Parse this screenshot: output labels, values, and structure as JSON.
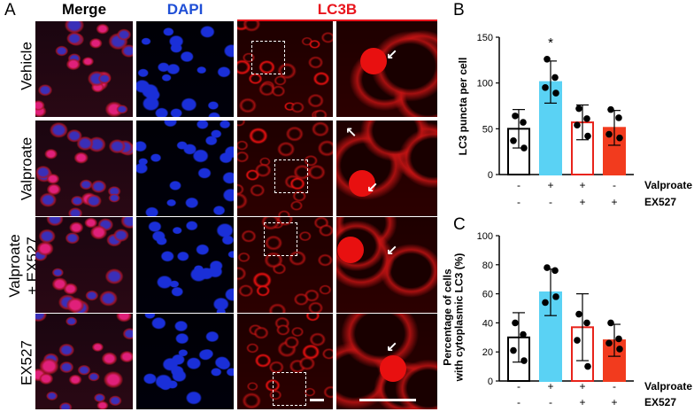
{
  "figure": {
    "panel_labels": {
      "a": "A",
      "b": "B",
      "c": "C"
    },
    "columns": [
      {
        "label": "Merge",
        "color": "#000000"
      },
      {
        "label": "DAPI",
        "color": "#1f4fd6"
      },
      {
        "label": "LC3B",
        "color": "#e8141c"
      }
    ],
    "rows": [
      {
        "label": "Vehicle"
      },
      {
        "label": "Valproate"
      },
      {
        "label": "Valproate\n+ EX527"
      },
      {
        "label": "EX527"
      }
    ],
    "colors": {
      "vehicle": "#ffffff",
      "valproate": "#5ad2f4",
      "valproate_ex527": "#ffffff",
      "ex527": "#f23b1e",
      "outline_red": "#e8231b",
      "lc3_red": "#e81010",
      "dapi_blue": "#1a2fd8",
      "nucleus_magenta": "#e0207a"
    }
  },
  "chart_data": [
    {
      "panel": "B",
      "type": "bar",
      "ylabel": "LC3 puncta per cell",
      "ylim": [
        0,
        150
      ],
      "yticks": [
        0,
        50,
        100,
        150
      ],
      "categories": [
        "Vehicle",
        "Valproate",
        "Valproate + EX527",
        "EX527"
      ],
      "values": [
        50,
        101,
        57,
        51
      ],
      "errors": [
        21,
        23,
        19,
        19
      ],
      "points": [
        [
          64,
          57,
          37,
          29
        ],
        [
          126,
          106,
          95,
          89
        ],
        [
          72,
          61,
          54,
          42
        ],
        [
          71,
          62,
          44,
          40
        ]
      ],
      "significance": [
        "",
        "*",
        "",
        ""
      ],
      "row_labels": [
        "Valproate",
        "EX527"
      ],
      "matrix": [
        [
          "-",
          "+",
          "+",
          "-"
        ],
        [
          "-",
          "-",
          "+",
          "+"
        ]
      ]
    },
    {
      "panel": "C",
      "type": "bar",
      "ylabel": "Percentage of cells\nwith cytoplasmic LC3 (%)",
      "ylim": [
        0,
        100
      ],
      "yticks": [
        0,
        20,
        40,
        60,
        80,
        100
      ],
      "categories": [
        "Vehicle",
        "Valproate",
        "Valproate + EX527",
        "EX527"
      ],
      "values": [
        30,
        61,
        37,
        28
      ],
      "errors": [
        17,
        16,
        23,
        11
      ],
      "points": [
        [
          40,
          32,
          21,
          14
        ],
        [
          78,
          76,
          54,
          58
        ],
        [
          46,
          40,
          28,
          10
        ],
        [
          40,
          29,
          26,
          22
        ]
      ],
      "significance": [
        "",
        "",
        "",
        ""
      ],
      "row_labels": [
        "Valproate",
        "EX527"
      ],
      "matrix": [
        [
          "-",
          "+",
          "+",
          "-"
        ],
        [
          "-",
          "-",
          "+",
          "+"
        ]
      ]
    }
  ]
}
